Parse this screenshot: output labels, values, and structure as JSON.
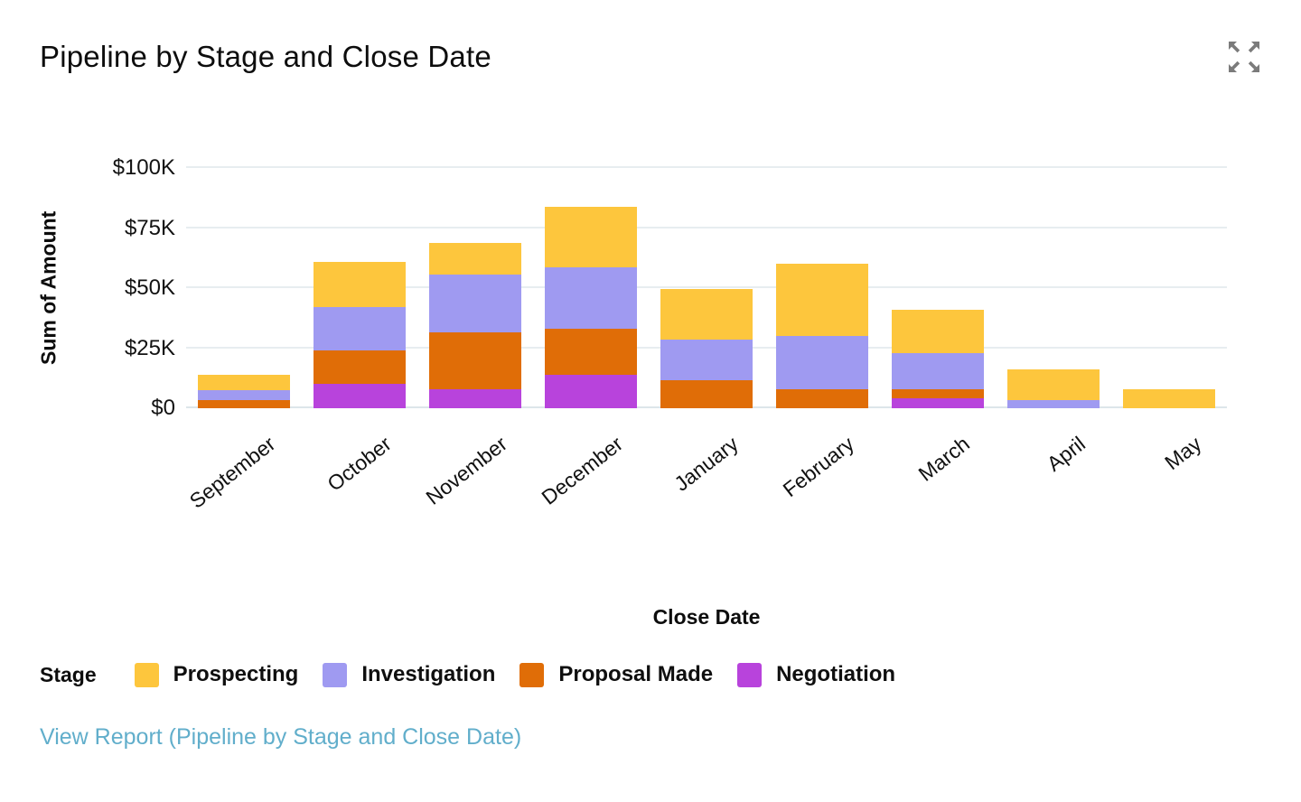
{
  "header": {
    "title": "Pipeline by Stage and Close Date"
  },
  "icons": {
    "expand": "four-outward-arrows"
  },
  "colors": {
    "prospecting": "#FDC63D",
    "investigation": "#9F9AF1",
    "proposal_made": "#E06D07",
    "negotiation": "#B843DC",
    "gridline": "#E7EDF0",
    "link": "#61AECB",
    "icon_gray": "#7B7B7B",
    "text": "#0D0D0D"
  },
  "chart_data": {
    "type": "bar",
    "stacked": true,
    "title": "Pipeline by Stage and Close Date",
    "xlabel": "Close Date",
    "ylabel": "Sum of Amount",
    "values_unit": "thousand USD",
    "ylim": [
      0,
      100
    ],
    "ytick_values": [
      0,
      25,
      50,
      75,
      100
    ],
    "ytick_labels": [
      "$0",
      "$25K",
      "$50K",
      "$75K",
      "$100K"
    ],
    "grid": true,
    "legend_title": "Stage",
    "legend_position": "bottom",
    "categories": [
      "September",
      "October",
      "November",
      "December",
      "January",
      "February",
      "March",
      "April",
      "May"
    ],
    "series": [
      {
        "name": "Prospecting",
        "color": "#FDC63D",
        "values": [
          6.5,
          19,
          13.5,
          25.5,
          21,
          30,
          18,
          12.5,
          8
        ]
      },
      {
        "name": "Investigation",
        "color": "#9F9AF1",
        "values": [
          4,
          18,
          24,
          25.5,
          17,
          22,
          15,
          3.5,
          0
        ]
      },
      {
        "name": "Proposal Made",
        "color": "#E06D07",
        "values": [
          3.5,
          14,
          23.5,
          19,
          11.5,
          8,
          4,
          0,
          0
        ]
      },
      {
        "name": "Negotiation",
        "color": "#B843DC",
        "values": [
          0,
          10,
          8,
          14,
          0,
          0,
          4,
          0,
          0
        ]
      }
    ],
    "totals": [
      14,
      61,
      69,
      84,
      49.5,
      60,
      41,
      16,
      8
    ]
  },
  "footer": {
    "view_report_label": "View Report (Pipeline by Stage and Close Date)"
  }
}
